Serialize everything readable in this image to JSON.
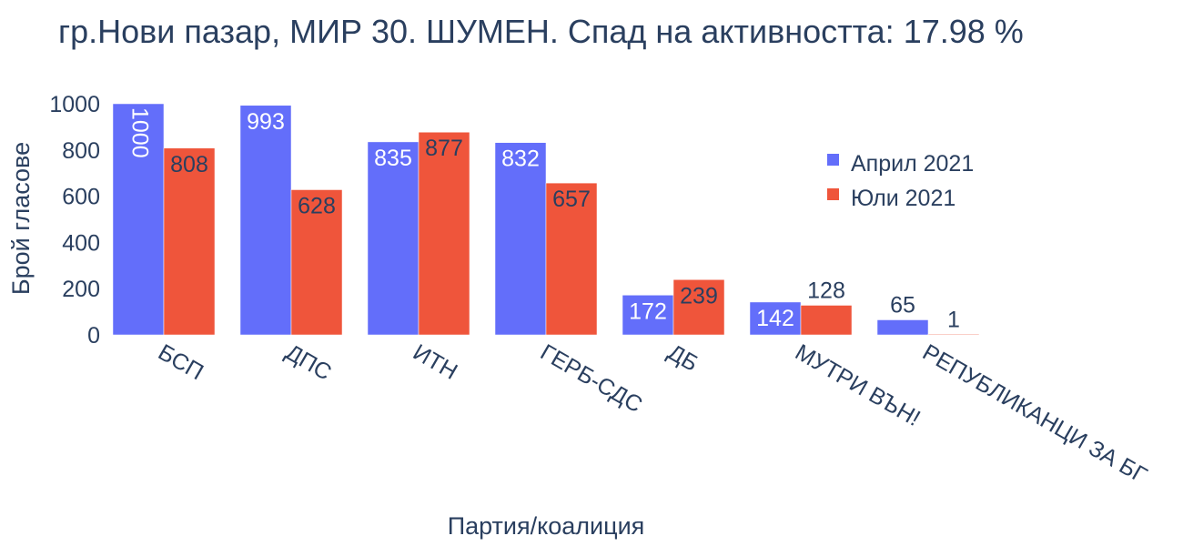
{
  "chart_data": {
    "type": "bar",
    "title": "гр.Нови пазар, МИР 30. ШУМЕН. Спад на активността: 17.98 %",
    "xlabel": "Партия/коалиция",
    "ylabel": "Брой гласове",
    "categories": [
      "БСП",
      "ДПС",
      "ИТН",
      "ГЕРБ-СДС",
      "ДБ",
      "МУТРИ ВЪН!",
      "РЕПУБЛИКАНЦИ ЗА БГ"
    ],
    "series": [
      {
        "name": "Април 2021",
        "color": "#636efa",
        "values": [
          1000,
          993,
          835,
          832,
          172,
          142,
          65
        ]
      },
      {
        "name": "Юли 2021",
        "color": "#ef553b",
        "values": [
          808,
          628,
          877,
          657,
          239,
          128,
          1
        ]
      }
    ],
    "ylim": [
      0,
      1000
    ],
    "yticks": [
      0,
      200,
      400,
      600,
      800,
      1000
    ],
    "grid": false,
    "legend_position": "top-right"
  }
}
